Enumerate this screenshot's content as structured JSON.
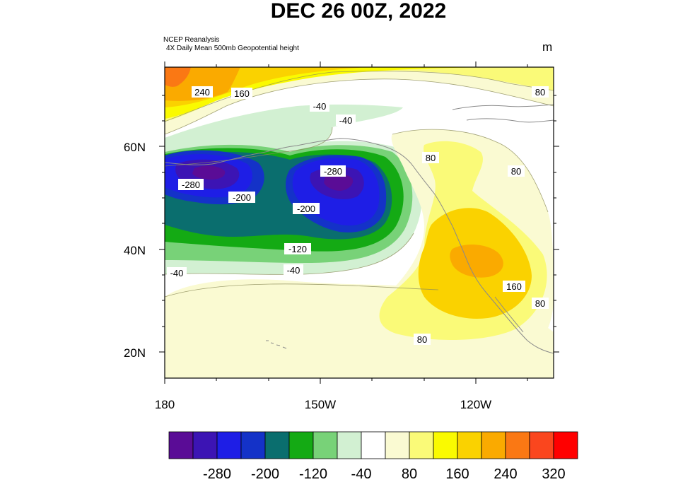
{
  "title": "DEC 26 00Z, 2022",
  "source": "NCEP Reanalysis",
  "variable": "4X Daily Mean 500mb Geopotential height",
  "units": "m",
  "axes": {
    "lat_labels": [
      "60N",
      "40N",
      "20N"
    ],
    "lon_labels": [
      "180",
      "150W",
      "120W"
    ]
  },
  "colorbar": {
    "colors": [
      "#5a0c96",
      "#3c14b4",
      "#1e1ee6",
      "#1432c8",
      "#0a6e6e",
      "#14aa14",
      "#78d278",
      "#d2f0d2",
      "#ffffff",
      "#fafad2",
      "#fafa78",
      "#fafa00",
      "#fad200",
      "#faaa00",
      "#fa7814",
      "#fa461e",
      "#ff0000"
    ],
    "labels": [
      "-280",
      "-200",
      "-120",
      "-40",
      "80",
      "160",
      "240",
      "320"
    ]
  },
  "contour_labels": [
    {
      "text": "240"
    },
    {
      "text": "160"
    },
    {
      "text": "80"
    },
    {
      "text": "-40"
    },
    {
      "text": "-40"
    },
    {
      "text": "80"
    },
    {
      "text": "80"
    },
    {
      "text": "-280"
    },
    {
      "text": "-280"
    },
    {
      "text": "-200"
    },
    {
      "text": "-200"
    },
    {
      "text": "-120"
    },
    {
      "text": "-40"
    },
    {
      "text": "-40"
    },
    {
      "text": "160"
    },
    {
      "text": "80"
    },
    {
      "text": "80"
    }
  ]
}
